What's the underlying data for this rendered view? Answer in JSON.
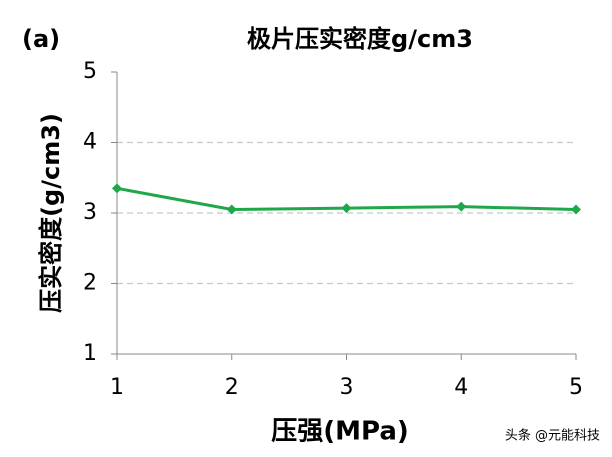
{
  "panel_label": "(a)",
  "watermark": "头条 @元能科技",
  "chart_data": {
    "type": "line",
    "title": "极片压实密度g/cm3",
    "x_label": "压强(MPa)",
    "y_label": "压实密度(g/cm3)",
    "x": [
      1,
      2,
      3,
      4,
      5
    ],
    "series": [
      {
        "name": "压实密度",
        "color": "#1fa84a",
        "values": [
          3.35,
          3.05,
          3.07,
          3.09,
          3.05
        ]
      }
    ],
    "xlim": [
      1,
      5
    ],
    "xticks": [
      1,
      2,
      3,
      4,
      5
    ],
    "ylim": [
      1,
      5
    ],
    "yticks": [
      1,
      2,
      3,
      4,
      5
    ],
    "grid": true
  }
}
